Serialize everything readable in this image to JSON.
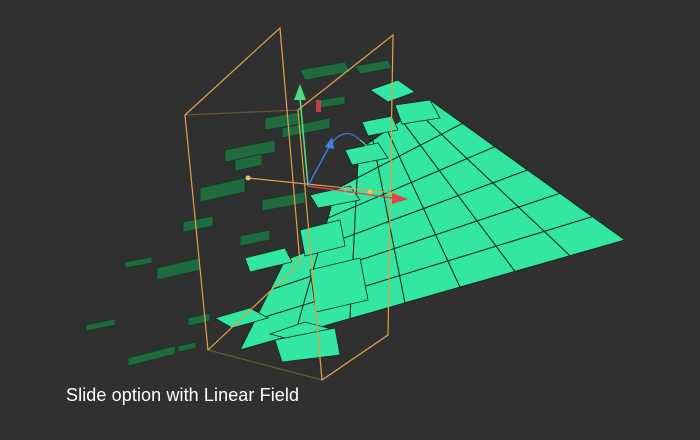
{
  "caption": "Slide option with Linear Field",
  "colors": {
    "background": "#303030",
    "tile_bright": "#33e6a1",
    "tile_dark": "#1f6a3f",
    "tile_edge": "#0e2a1c",
    "field_frame": "#e0a24a",
    "axis_x": "#e0434a",
    "axis_y": "#52d880",
    "axis_z": "#3f7fe0"
  },
  "scene_icons": [
    "linear-field-frame-icon",
    "transform-gizmo-icon",
    "axis-x-arrow-icon",
    "axis-y-arrow-icon",
    "axis-z-arrow-icon"
  ]
}
